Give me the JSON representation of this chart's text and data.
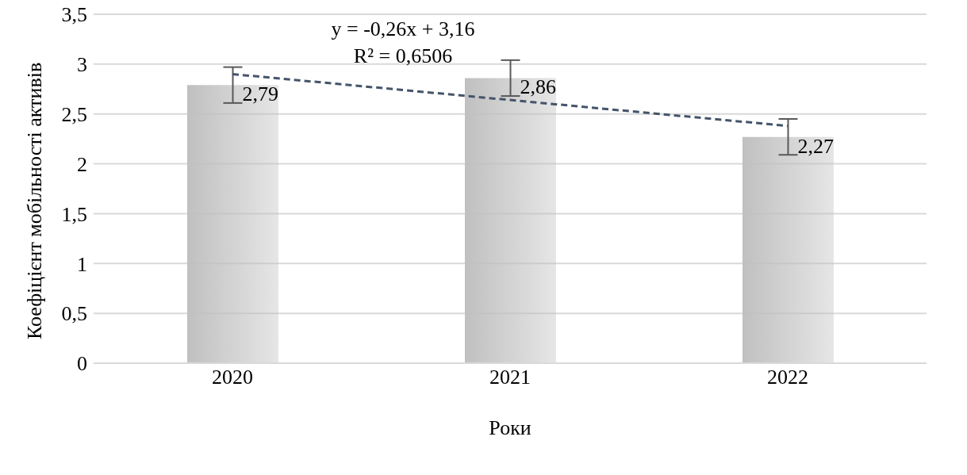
{
  "chart_data": {
    "type": "bar",
    "xlabel": "Роки",
    "ylabel": "Коефіцієнт мобільності активів",
    "categories": [
      "2020",
      "2021",
      "2022"
    ],
    "series": [
      {
        "color": "#c0c0c0",
        "values": [
          2.79,
          2.86,
          2.27
        ],
        "errors": [
          0.18,
          0.18,
          0.18
        ],
        "value_labels": [
          "2,79",
          "2,86",
          "2,27"
        ]
      },
      {
        "type": "line",
        "color": "#44546a",
        "line_style": "dashed",
        "values": [
          2.9,
          2.64,
          2.38
        ]
      }
    ],
    "ylim": [
      0,
      3.5
    ],
    "yticks": [
      0,
      {
        "value": 0.5,
        "label": "0,5"
      },
      1,
      {
        "value": 1.5,
        "label": "1,5"
      },
      2,
      {
        "value": 2.5,
        "label": "2,5"
      },
      3,
      {
        "value": 3.5,
        "label": "3,5"
      }
    ],
    "grid": "y",
    "annotations": [
      "y = -0,26x + 3,16",
      "R² = 0,6506"
    ]
  }
}
